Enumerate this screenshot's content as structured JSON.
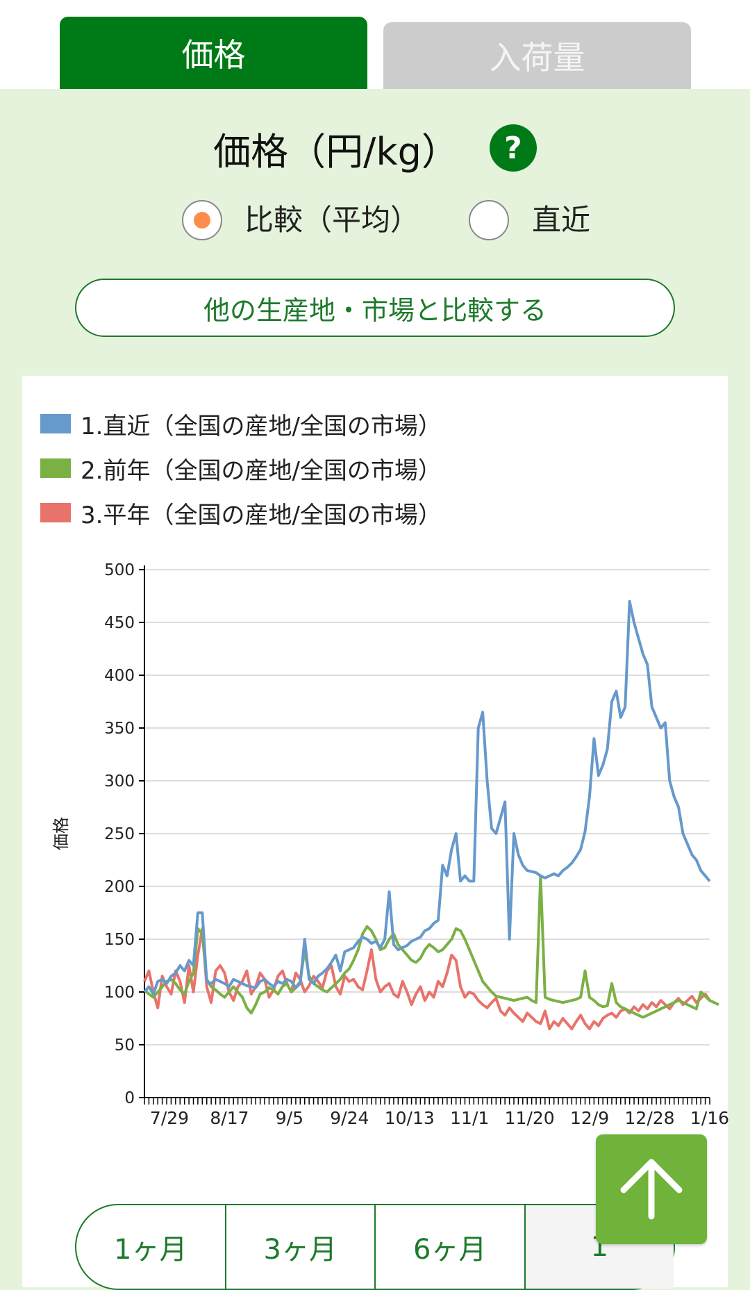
{
  "tabs": [
    {
      "label": "価格"
    },
    {
      "label": "入荷量"
    }
  ],
  "section": {
    "title": "価格（円/kg）",
    "help_icon": "?"
  },
  "radio_options": [
    {
      "label": "比較（平均）",
      "selected": true
    },
    {
      "label": "直近",
      "selected": false
    }
  ],
  "compare_button": {
    "label": "他の生産地・市場と比較する"
  },
  "colors": {
    "accent": "#007a16",
    "series1": "#6699cc",
    "series2": "#7bb045",
    "series3": "#e8736b",
    "radio_dot": "#ff8c4a",
    "to_top": "#6fb33a"
  },
  "chart_data": {
    "type": "line",
    "ylabel": "価格",
    "ylim": [
      0,
      500
    ],
    "yticks": [
      0,
      50,
      100,
      150,
      200,
      250,
      300,
      350,
      400,
      450,
      500
    ],
    "xtick_labels": [
      "7/29",
      "8/17",
      "9/5",
      "9/24",
      "10/13",
      "11/1",
      "11/20",
      "12/9",
      "12/28",
      "1/16"
    ],
    "grid": true,
    "legend_position": "top-left",
    "series": [
      {
        "name": "1.直近（全国の産地/全国の市場）",
        "values": [
          100,
          105,
          98,
          110,
          112,
          108,
          115,
          118,
          125,
          120,
          130,
          125,
          175,
          175,
          110,
          108,
          112,
          110,
          108,
          105,
          112,
          110,
          108,
          106,
          105,
          104,
          110,
          112,
          108,
          105,
          110,
          108,
          112,
          110,
          104,
          108,
          150,
          112,
          108,
          115,
          118,
          122,
          128,
          135,
          120,
          138,
          140,
          142,
          148,
          152,
          150,
          146,
          148,
          142,
          150,
          195,
          145,
          140,
          142,
          144,
          148,
          150,
          152,
          158,
          160,
          165,
          168,
          220,
          210,
          235,
          250,
          205,
          210,
          205,
          205,
          350,
          365,
          300,
          255,
          250,
          265,
          280,
          150,
          250,
          230,
          220,
          215,
          214,
          213,
          210,
          208,
          210,
          212,
          210,
          215,
          218,
          222,
          228,
          235,
          252,
          285,
          340,
          305,
          315,
          330,
          375,
          385,
          360,
          370,
          470,
          450,
          435,
          420,
          410,
          370,
          360,
          350,
          355,
          300,
          285,
          275,
          250,
          240,
          230,
          225,
          215,
          210,
          205
        ]
      },
      {
        "name": "2.前年（全国の産地/全国の市場）",
        "values": [
          102,
          98,
          95,
          100,
          105,
          110,
          112,
          108,
          102,
          98,
          110,
          118,
          160,
          155,
          112,
          105,
          102,
          98,
          95,
          100,
          105,
          100,
          95,
          85,
          80,
          88,
          98,
          100,
          104,
          102,
          98,
          105,
          108,
          100,
          104,
          110,
          140,
          115,
          108,
          105,
          102,
          100,
          104,
          108,
          112,
          118,
          122,
          130,
          140,
          155,
          162,
          158,
          150,
          140,
          142,
          150,
          155,
          145,
          140,
          135,
          130,
          128,
          132,
          140,
          145,
          142,
          138,
          140,
          145,
          150,
          160,
          158,
          150,
          140,
          130,
          120,
          110,
          105,
          100,
          96,
          95,
          94,
          93,
          92,
          93,
          94,
          95,
          92,
          90,
          210,
          95,
          93,
          92,
          91,
          90,
          91,
          92,
          93,
          95,
          120,
          95,
          92,
          88,
          86,
          87,
          108,
          90,
          86,
          84,
          82,
          80,
          78,
          76,
          78,
          80,
          82,
          84,
          86,
          88,
          90,
          92,
          90,
          88,
          86,
          84,
          100,
          96,
          92,
          90,
          88
        ]
      },
      {
        "name": "3.平年（全国の産地/全国の市場）",
        "values": [
          110,
          120,
          100,
          85,
          115,
          105,
          98,
          120,
          110,
          90,
          125,
          100,
          135,
          160,
          105,
          90,
          120,
          125,
          118,
          100,
          92,
          105,
          110,
          120,
          98,
          105,
          118,
          112,
          95,
          102,
          115,
          120,
          108,
          100,
          118,
          112,
          100,
          106,
          115,
          110,
          104,
          120,
          125,
          105,
          98,
          115,
          110,
          112,
          105,
          102,
          120,
          140,
          112,
          100,
          105,
          108,
          98,
          95,
          110,
          100,
          88,
          98,
          105,
          92,
          100,
          95,
          110,
          105,
          118,
          135,
          130,
          105,
          95,
          100,
          98,
          92,
          88,
          85,
          90,
          94,
          82,
          78,
          85,
          80,
          76,
          72,
          80,
          76,
          72,
          70,
          82,
          65,
          72,
          68,
          75,
          70,
          65,
          72,
          78,
          70,
          65,
          72,
          68,
          75,
          78,
          80,
          76,
          82,
          84,
          80,
          86,
          82,
          88,
          84,
          90,
          86,
          92,
          88,
          84,
          90,
          94,
          88,
          92,
          96,
          90,
          94,
          98,
          92
        ]
      }
    ]
  },
  "period_buttons": [
    {
      "label": "1ヶ月"
    },
    {
      "label": "3ヶ月"
    },
    {
      "label": "6ヶ月"
    },
    {
      "label": "1"
    }
  ],
  "to_top_icon": "arrow-up-icon"
}
